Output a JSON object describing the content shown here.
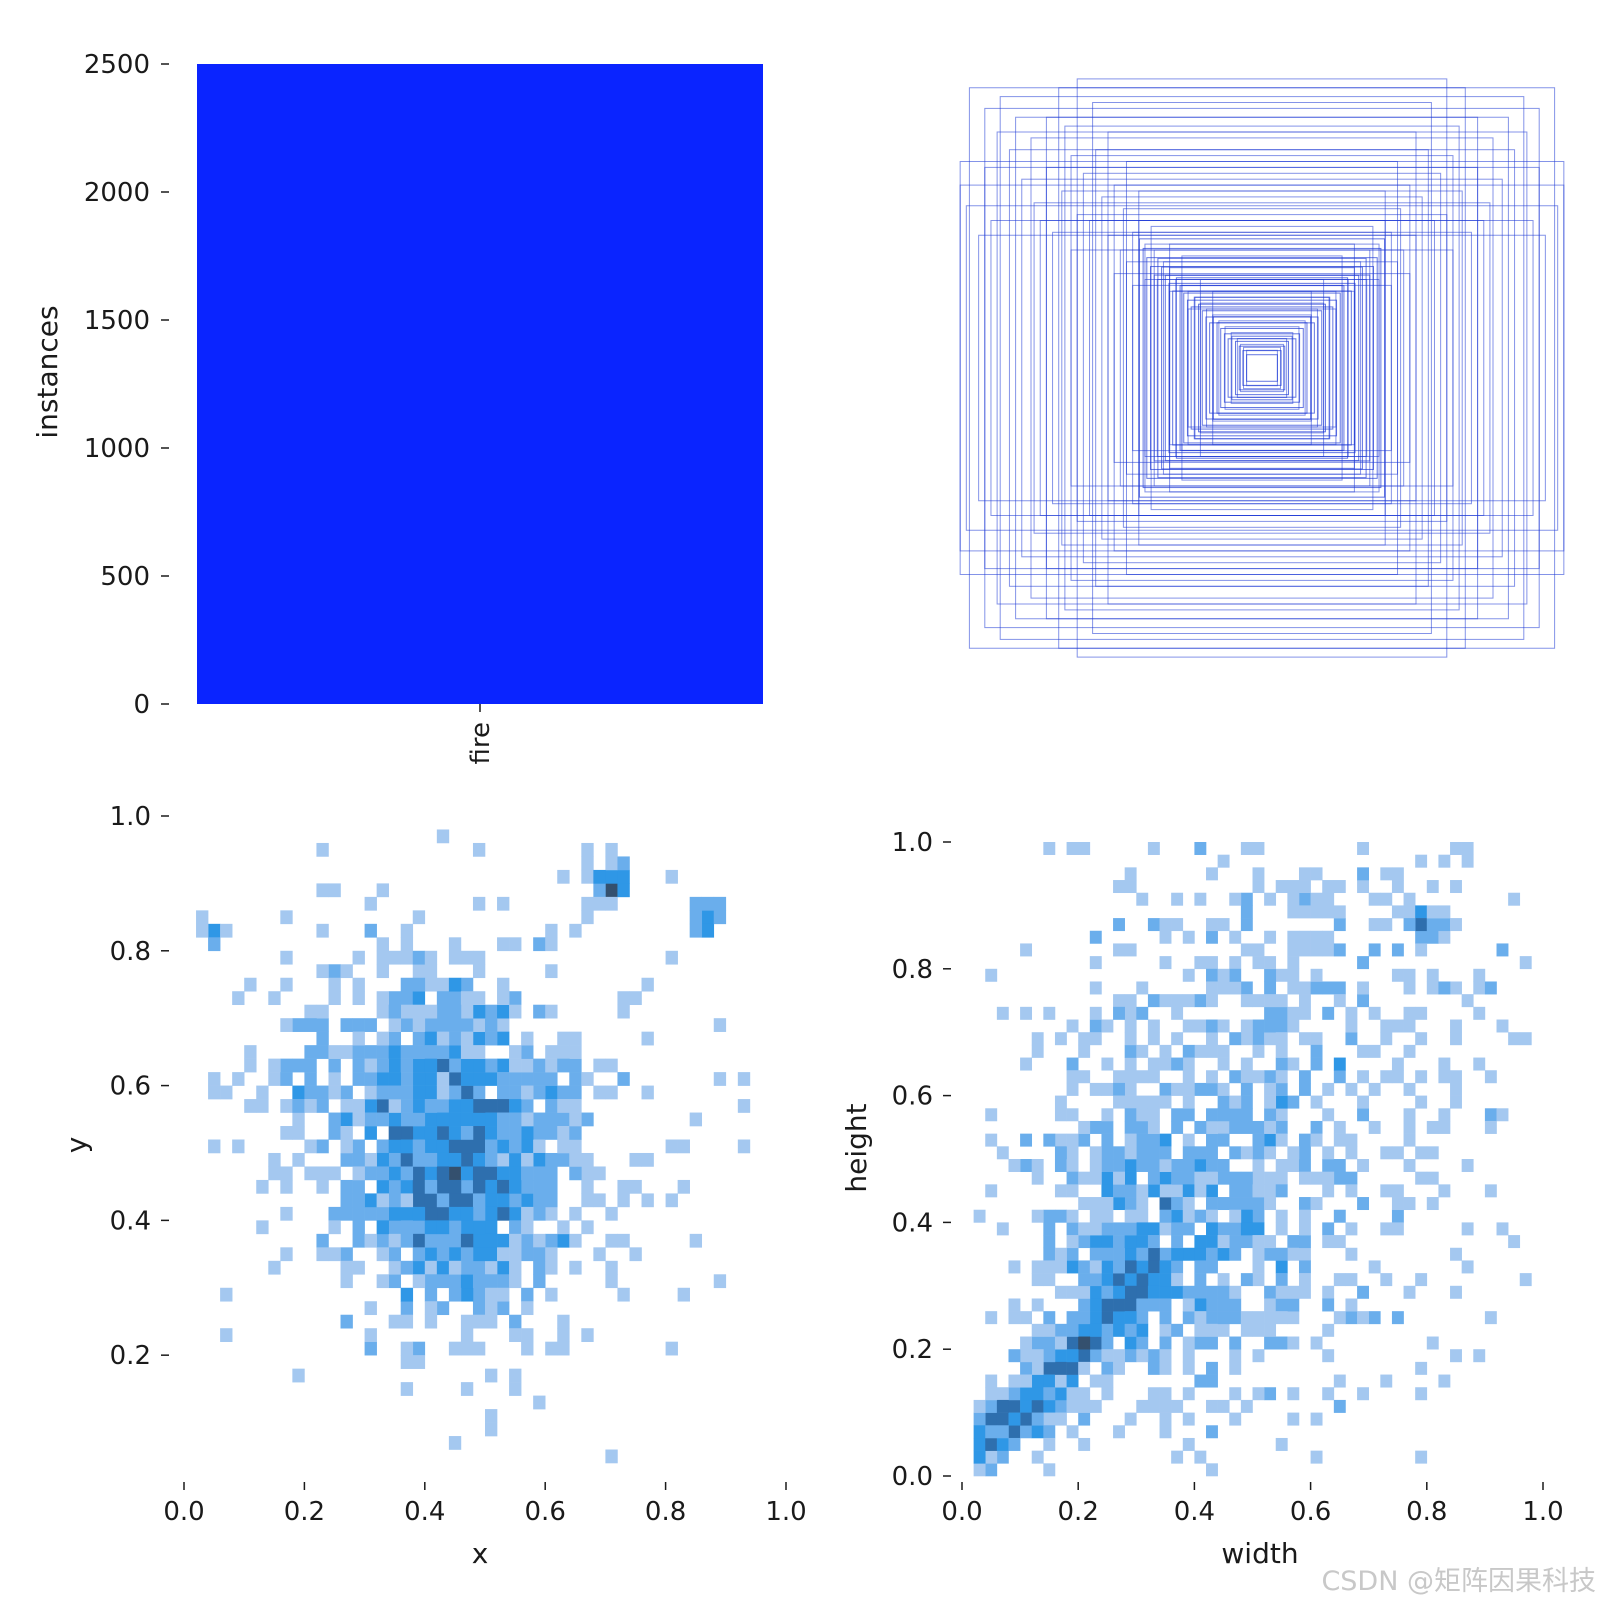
{
  "chart_data": [
    {
      "type": "bar",
      "categories": [
        "fire"
      ],
      "values": [
        2500
      ],
      "xlabel": "",
      "ylabel": "instances",
      "ylim": [
        0,
        2500
      ],
      "yticks": [
        "0",
        "500",
        "1000",
        "1500",
        "2000",
        "2500"
      ],
      "color": "#0a24ff",
      "grid": false
    },
    {
      "type": "boxes",
      "description_free": true,
      "box_color": "#1f3bd6",
      "boxes_wh": [
        [
          0.95,
          0.95
        ],
        [
          0.9,
          0.88
        ],
        [
          0.85,
          0.92
        ],
        [
          0.8,
          0.85
        ],
        [
          0.75,
          0.78
        ],
        [
          0.98,
          0.7
        ],
        [
          0.98,
          0.62
        ],
        [
          0.96,
          0.55
        ],
        [
          0.6,
          0.98
        ],
        [
          0.55,
          0.9
        ],
        [
          0.5,
          0.8
        ],
        [
          0.7,
          0.68
        ],
        [
          0.65,
          0.6
        ],
        [
          0.62,
          0.72
        ],
        [
          0.58,
          0.66
        ],
        [
          0.52,
          0.58
        ],
        [
          0.48,
          0.62
        ],
        [
          0.45,
          0.54
        ],
        [
          0.4,
          0.5
        ],
        [
          0.42,
          0.46
        ],
        [
          0.38,
          0.42
        ],
        [
          0.35,
          0.4
        ],
        [
          0.32,
          0.36
        ],
        [
          0.3,
          0.34
        ],
        [
          0.28,
          0.3
        ],
        [
          0.26,
          0.28
        ],
        [
          0.24,
          0.26
        ],
        [
          0.22,
          0.24
        ],
        [
          0.2,
          0.22
        ],
        [
          0.18,
          0.2
        ],
        [
          0.16,
          0.18
        ],
        [
          0.14,
          0.16
        ],
        [
          0.12,
          0.14
        ],
        [
          0.1,
          0.12
        ],
        [
          0.08,
          0.1
        ],
        [
          0.07,
          0.08
        ],
        [
          0.06,
          0.07
        ],
        [
          0.05,
          0.06
        ],
        [
          0.88,
          0.5
        ],
        [
          0.92,
          0.45
        ],
        [
          0.7,
          0.85
        ],
        [
          0.66,
          0.95
        ],
        [
          0.44,
          0.7
        ],
        [
          0.5,
          0.45
        ],
        [
          0.56,
          0.5
        ],
        [
          0.6,
          0.52
        ],
        [
          0.46,
          0.4
        ],
        [
          0.36,
          0.48
        ],
        [
          0.34,
          0.3
        ],
        [
          0.3,
          0.42
        ],
        [
          0.74,
          0.56
        ],
        [
          0.78,
          0.64
        ],
        [
          0.82,
          0.74
        ],
        [
          0.86,
          0.8
        ],
        [
          0.9,
          0.68
        ],
        [
          0.64,
          0.82
        ],
        [
          0.54,
          0.74
        ],
        [
          0.4,
          0.6
        ],
        [
          0.44,
          0.36
        ],
        [
          0.48,
          0.32
        ],
        [
          0.62,
          0.4
        ],
        [
          0.68,
          0.46
        ],
        [
          0.72,
          0.5
        ],
        [
          0.26,
          0.38
        ],
        [
          0.2,
          0.3
        ],
        [
          0.16,
          0.26
        ],
        [
          0.24,
          0.2
        ],
        [
          0.3,
          0.26
        ],
        [
          0.38,
          0.3
        ],
        [
          0.42,
          0.28
        ]
      ]
    },
    {
      "type": "heatmap",
      "xlabel": "x",
      "ylabel": "y",
      "xticks": [
        "0.0",
        "0.2",
        "0.4",
        "0.6",
        "0.8",
        "1.0"
      ],
      "yticks": [
        "0.2",
        "0.4",
        "0.6",
        "0.8",
        "1.0"
      ],
      "xlim": [
        0,
        1
      ],
      "ylim": [
        0.04,
        1.0
      ],
      "bin_size": 0.02,
      "clusters": [
        {
          "x": 0.46,
          "y": 0.46,
          "sx": 0.09,
          "sy": 0.11,
          "n": 900
        },
        {
          "x": 0.38,
          "y": 0.62,
          "sx": 0.12,
          "sy": 0.1,
          "n": 350
        },
        {
          "x": 0.71,
          "y": 0.9,
          "sx": 0.015,
          "sy": 0.015,
          "n": 40
        },
        {
          "x": 0.87,
          "y": 0.86,
          "sx": 0.012,
          "sy": 0.01,
          "n": 20
        },
        {
          "x": 0.05,
          "y": 0.82,
          "sx": 0.01,
          "sy": 0.01,
          "n": 10
        },
        {
          "x": 0.5,
          "y": 0.55,
          "sx": 0.22,
          "sy": 0.22,
          "n": 260
        }
      ],
      "colors": [
        "#a4c8f0",
        "#6aaeec",
        "#2f97e6",
        "#2e6fae",
        "#34506e"
      ]
    },
    {
      "type": "heatmap",
      "xlabel": "width",
      "ylabel": "height",
      "xticks": [
        "0.0",
        "0.2",
        "0.4",
        "0.6",
        "0.8",
        "1.0"
      ],
      "yticks": [
        "0.0",
        "0.2",
        "0.4",
        "0.6",
        "0.8",
        "1.0"
      ],
      "xlim": [
        0,
        1
      ],
      "ylim": [
        0,
        1
      ],
      "bin_size": 0.02,
      "clusters": [
        {
          "x": 0.12,
          "y": 0.12,
          "sx": 0.05,
          "sy": 0.05,
          "n": 450,
          "diag": true
        },
        {
          "x": 0.35,
          "y": 0.38,
          "sx": 0.12,
          "sy": 0.14,
          "n": 600
        },
        {
          "x": 0.55,
          "y": 0.6,
          "sx": 0.22,
          "sy": 0.24,
          "n": 700
        },
        {
          "x": 0.8,
          "y": 0.86,
          "sx": 0.02,
          "sy": 0.02,
          "n": 30
        }
      ],
      "colors": [
        "#a4c8f0",
        "#6aaeec",
        "#2f97e6",
        "#2e6fae",
        "#34506e"
      ]
    }
  ],
  "watermark": "CSDN @矩阵因果科技"
}
